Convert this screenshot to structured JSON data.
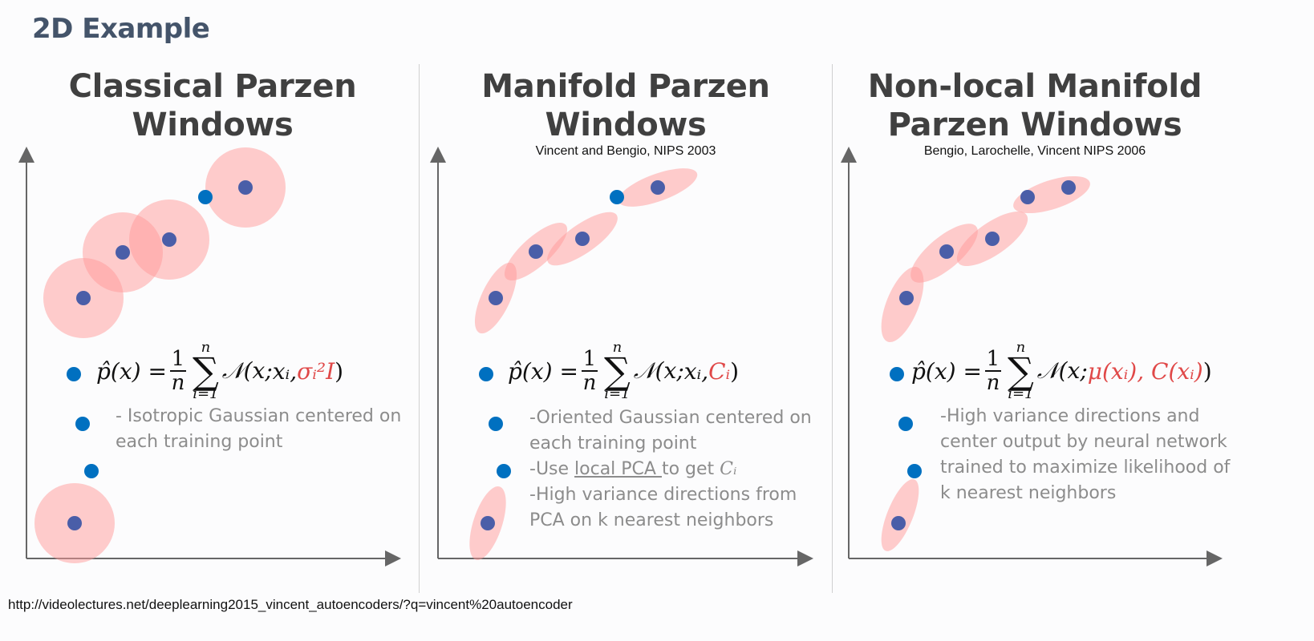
{
  "slide": {
    "title": "2D Example",
    "url": "http://videolectures.net/deeplearning2015_vincent_autoencoders/?q=vincent%20autoencoder"
  },
  "panels": [
    {
      "title_line1": "Classical Parzen",
      "title_line2": "Windows",
      "citation": "",
      "formula_highlight": "σᵢ²I",
      "desc_lines": [
        "- Isotropic Gaussian centered on",
        "each training point"
      ]
    },
    {
      "title_line1": "Manifold Parzen",
      "title_line2": "Windows",
      "citation": "Vincent and Bengio, NIPS 2003",
      "formula_highlight": "Cᵢ",
      "desc_lines": [
        "-Oriented Gaussian centered on",
        "each training point",
        "-Use ",
        "local PCA ",
        "to get ",
        "Cᵢ",
        "-High variance directions from",
        "PCA on k nearest neighbors"
      ]
    },
    {
      "title_line1": "Non-local Manifold",
      "title_line2": "Parzen Windows",
      "citation": "Bengio, Larochelle, Vincent NIPS 2006",
      "formula_highlight": "μ(xᵢ), C(xᵢ)",
      "desc_lines": [
        "-High variance directions and",
        "center output by neural network",
        "trained to maximize likelihood of",
        "k nearest neighbors"
      ]
    }
  ],
  "formula": {
    "lhs": "p̂(x) =",
    "frac_num": "1",
    "frac_den": "n",
    "sum_top": "n",
    "sum_sym": "∑",
    "sum_bot": "i=1",
    "normal_open": "𝒩(x; ",
    "xi": "xᵢ, ",
    "close": ")"
  },
  "colors": {
    "title": "#44546a",
    "point": "#0070c0",
    "point_dark": "#4a5ea8",
    "window": "#ff9999",
    "highlight": "#e04848"
  }
}
